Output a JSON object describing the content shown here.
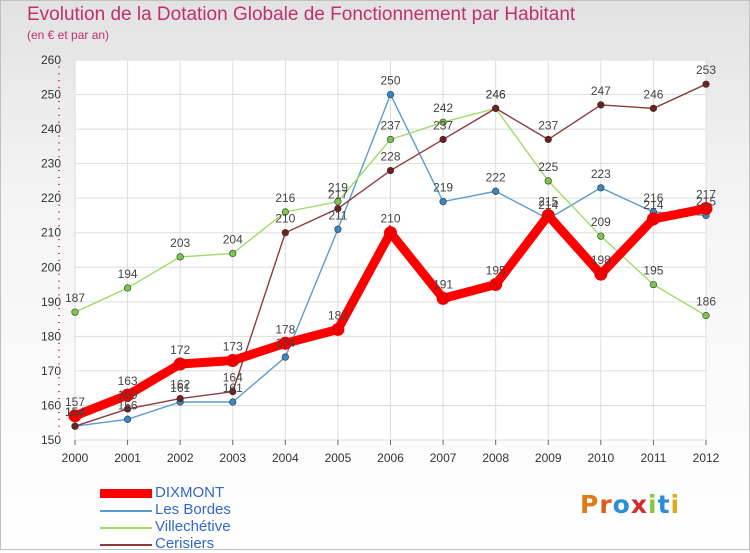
{
  "header": {
    "title": "Evolution de la Dotation Globale de Fonctionnement par Habitant",
    "subtitle": "(en € et par an)"
  },
  "brand": {
    "logo_text": "Proxiti",
    "logo_colors": [
      "#e07b1a",
      "#e05a1a",
      "#2b8fd6",
      "#d62b2b",
      "#8cc63f",
      "#2b8fd6",
      "#e0a81a"
    ]
  },
  "chart_data": {
    "type": "line",
    "title": "Evolution de la Dotation Globale de Fonctionnement par Habitant",
    "subtitle": "(en € et par an)",
    "xlabel": "",
    "ylabel": "",
    "ylim": [
      150,
      260
    ],
    "yticks": [
      150,
      160,
      170,
      180,
      190,
      200,
      210,
      220,
      230,
      240,
      250,
      260
    ],
    "grid": true,
    "categories": [
      "2000",
      "2001",
      "2002",
      "2003",
      "2004",
      "2005",
      "2006",
      "2007",
      "2008",
      "2009",
      "2010",
      "2011",
      "2012"
    ],
    "legend_position": "bottom-left",
    "series": [
      {
        "name": "Les Bordes",
        "color": "#5a9cd0",
        "marker": "#3a86c6",
        "values": [
          154,
          156,
          161,
          161,
          174,
          211,
          250,
          219,
          222,
          214,
          223,
          216,
          215
        ],
        "labels": [
          "154",
          "156",
          "161",
          "161",
          "174",
          "211",
          "250",
          "219",
          "222",
          "214",
          "223",
          "216",
          "215"
        ]
      },
      {
        "name": "Villechétive",
        "color": "#9fdc6a",
        "marker": "#7ac64a",
        "values": [
          187,
          194,
          203,
          204,
          216,
          219,
          237,
          242,
          246,
          225,
          209,
          195,
          186
        ],
        "labels": [
          "187",
          "194",
          "203",
          "204",
          "216",
          "219",
          "237",
          "242",
          "246",
          "225",
          "209",
          "195",
          "186"
        ]
      },
      {
        "name": "Cerisiers",
        "color": "#8e3a3a",
        "marker": "#6e2020",
        "values": [
          154,
          159,
          162,
          164,
          210,
          217,
          228,
          237,
          246,
          237,
          247,
          246,
          253
        ],
        "labels": [
          "154",
          "159",
          "162",
          "164",
          "210",
          "217",
          "228",
          "237",
          "246",
          "237",
          "247",
          "246",
          "253"
        ]
      },
      {
        "name": "DIXMONT",
        "color": "#ff0000",
        "marker": "#ee0000",
        "values": [
          157,
          163,
          172,
          173,
          178,
          182,
          210,
          191,
          195,
          215,
          198,
          214,
          217
        ],
        "labels": [
          "157",
          "163",
          "172",
          "173",
          "178",
          "182",
          "210",
          "191",
          "195",
          "215",
          "198",
          "214",
          "217"
        ]
      }
    ],
    "legend": [
      {
        "name": "DIXMONT",
        "color": "#ff0000",
        "thick": true
      },
      {
        "name": "Les Bordes",
        "color": "#5a9cd0",
        "thick": false
      },
      {
        "name": "Villechétive",
        "color": "#9fdc6a",
        "thick": false
      },
      {
        "name": "Cerisiers",
        "color": "#8e3a3a",
        "thick": false
      }
    ]
  }
}
